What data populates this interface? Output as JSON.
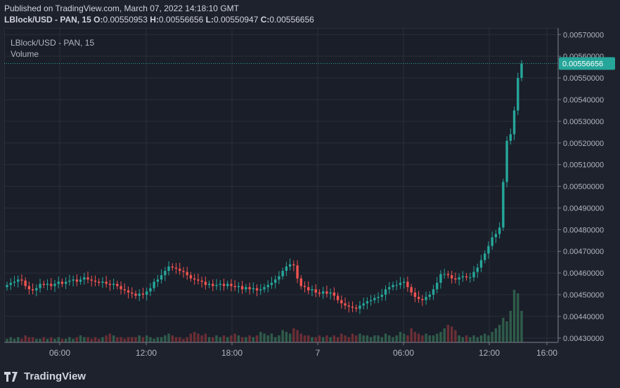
{
  "header": {
    "published": "Published on TradingView.com, March 07, 2022 14:18:10 GMT",
    "symbol": "LBlock/USD - PAN, 15",
    "o_label": "O:",
    "o_value": "0.00550953",
    "h_label": "H:",
    "h_value": "0.00556656",
    "l_label": "L:",
    "l_value": "0.00550947",
    "c_label": "C:",
    "c_value": "0.00556656"
  },
  "legend": {
    "symbol": "LBlock/USD - PAN, 15",
    "volume": "Volume"
  },
  "footer": {
    "brand": "TradingView"
  },
  "colors": {
    "up": "#26a69a",
    "down": "#ef5350",
    "vol_up": "#2f5c4a",
    "vol_down": "#6b2e35",
    "grid": "#2a2e39",
    "axis_text": "#b2b5be",
    "price_tag": "#26a69a"
  },
  "chart_data": {
    "type": "candlestick",
    "symbol": "LBlock/USD - PAN",
    "interval": "15",
    "y_ticks": [
      "0.00570000",
      "0.00560000",
      "0.00550000",
      "0.00540000",
      "0.00530000",
      "0.00520000",
      "0.00510000",
      "0.00500000",
      "0.00490000",
      "0.00480000",
      "0.00470000",
      "0.00460000",
      "0.00450000",
      "0.00440000",
      "0.00430000"
    ],
    "ylim": [
      0.00428,
      0.00573
    ],
    "x_ticks": [
      "06:00",
      "12:00",
      "18:00",
      "7",
      "06:00",
      "12:00",
      "16:00"
    ],
    "last_price": "0.00556656",
    "close_series": [
      0.004545,
      0.004555,
      0.00456,
      0.00457,
      0.004565,
      0.00454,
      0.004525,
      0.00452,
      0.00453,
      0.00455,
      0.004545,
      0.00455,
      0.00454,
      0.00455,
      0.00456,
      0.00455,
      0.00456,
      0.004565,
      0.00457,
      0.00456,
      0.00457,
      0.00458,
      0.00457,
      0.004565,
      0.00456,
      0.004555,
      0.00456,
      0.00455,
      0.004545,
      0.00455,
      0.00454,
      0.004525,
      0.00452,
      0.00451,
      0.004505,
      0.004495,
      0.004505,
      0.0045,
      0.004515,
      0.00453,
      0.00456,
      0.00457,
      0.00459,
      0.00461,
      0.00463,
      0.004625,
      0.00462,
      0.00461,
      0.004605,
      0.00459,
      0.004575,
      0.00457,
      0.004565,
      0.00456,
      0.004545,
      0.00455,
      0.00454,
      0.004545,
      0.00455,
      0.00454,
      0.00455,
      0.00454,
      0.004535,
      0.00454,
      0.004525,
      0.004535,
      0.004525,
      0.00453,
      0.00452,
      0.004525,
      0.004535,
      0.004545,
      0.004555,
      0.00457,
      0.004585,
      0.00461,
      0.00463,
      0.00464,
      0.004635,
      0.004575,
      0.00454,
      0.004535,
      0.00452,
      0.004525,
      0.00451,
      0.004505,
      0.004515,
      0.004505,
      0.00451,
      0.004495,
      0.004475,
      0.00446,
      0.00445,
      0.004445,
      0.00444,
      0.004435,
      0.00445,
      0.00446,
      0.00447,
      0.004475,
      0.004485,
      0.00449,
      0.0045,
      0.004525,
      0.004535,
      0.004545,
      0.004545,
      0.004555,
      0.00456,
      0.004535,
      0.00451,
      0.00449,
      0.00448,
      0.004475,
      0.00449,
      0.0045,
      0.004525,
      0.004555,
      0.004595,
      0.004595,
      0.00459,
      0.004575,
      0.00457,
      0.00458,
      0.004585,
      0.00458,
      0.00458,
      0.004605,
      0.004625,
      0.00466,
      0.00469,
      0.004725,
      0.004765,
      0.00478,
      0.00481,
      0.00502,
      0.00521,
      0.00524,
      0.00535,
      0.0055,
      0.00556656
    ],
    "volume_max": 0.00035,
    "volume_series": [
      2,
      3,
      2,
      3,
      2,
      4,
      3,
      3,
      2,
      2,
      3,
      2,
      3,
      2,
      3,
      2,
      2,
      3,
      2,
      3,
      4,
      3,
      3,
      2,
      3,
      2,
      3,
      4,
      5,
      4,
      3,
      3,
      2,
      3,
      3,
      3,
      4,
      3,
      4,
      3,
      2,
      3,
      3,
      4,
      5,
      4,
      3,
      3,
      2,
      3,
      5,
      6,
      5,
      4,
      5,
      3,
      3,
      4,
      3,
      4,
      3,
      4,
      5,
      4,
      3,
      3,
      4,
      3,
      4,
      6,
      5,
      4,
      5,
      3,
      4,
      7,
      6,
      5,
      8,
      7,
      5,
      4,
      4,
      3,
      3,
      4,
      3,
      4,
      3,
      4,
      3,
      5,
      4,
      3,
      5,
      4,
      5,
      4,
      4,
      3,
      4,
      4,
      3,
      5,
      4,
      3,
      4,
      6,
      5,
      4,
      8,
      6,
      5,
      4,
      5,
      4,
      4,
      5,
      6,
      8,
      10,
      9,
      7,
      4,
      3,
      4,
      3,
      4,
      3,
      4,
      5,
      4,
      6,
      8,
      10,
      14,
      12,
      18,
      30,
      28,
      18,
      40,
      26
    ]
  }
}
